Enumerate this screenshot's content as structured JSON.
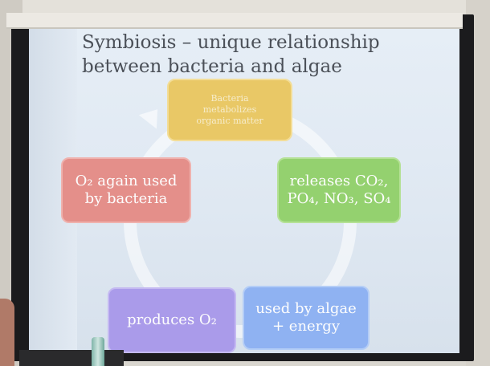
{
  "slide": {
    "title_line1": "Symbiosis – unique relationship",
    "title_line2": "between bacteria and algae"
  },
  "cycle": {
    "top": [
      "Bacteria",
      "metabolizes",
      "organic matter"
    ],
    "right": [
      "releases CO₂,",
      "PO₄, NO₃, SO₄"
    ],
    "bottom_right": [
      "used by algae",
      "+ energy"
    ],
    "bottom_left": [
      "produces O₂"
    ],
    "left": [
      "O₂ again used",
      "by bacteria"
    ]
  },
  "colors": {
    "top_box": "#e9c866",
    "right_box": "#94d16f",
    "bottom_right_box": "#8fb2f2",
    "bottom_left_box": "#aa9bea",
    "left_box": "#e48f8a"
  }
}
